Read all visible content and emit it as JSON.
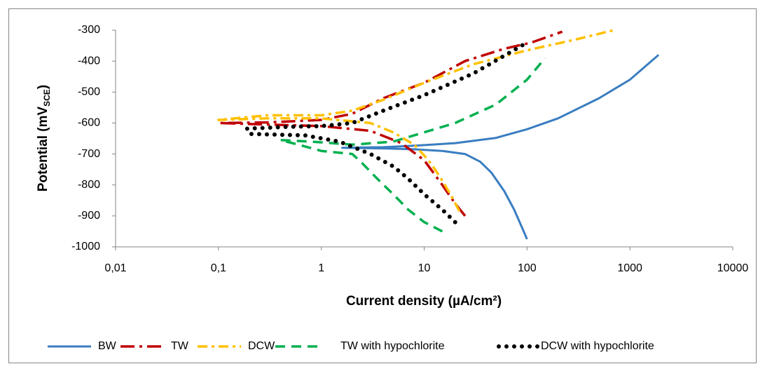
{
  "chart_data": {
    "type": "line",
    "xlabel": "Current density  (µA/cm²)",
    "ylabel": {
      "main": "Potential (mV",
      "sub": "SCE",
      "end": ")"
    },
    "xscale": "log",
    "xlim": [
      0.01,
      10000
    ],
    "xticks": [
      {
        "value": 0.01,
        "label": "0,01"
      },
      {
        "value": 0.1,
        "label": "0,1"
      },
      1,
      10,
      100,
      1000,
      10000
    ],
    "ylim": [
      -1000,
      -300
    ],
    "yticks": [
      -300,
      -400,
      -500,
      -600,
      -700,
      -800,
      -900,
      -1000
    ],
    "grid": false,
    "legend": "bottom",
    "series": [
      {
        "name": "BW",
        "color": "#3a7dc1",
        "dash": "solid",
        "x": [
          100,
          90,
          75,
          60,
          45,
          35,
          25,
          15,
          8,
          4,
          1.6,
          4,
          8,
          20,
          50,
          100,
          200,
          500,
          1000,
          1900
        ],
        "values": [
          -975,
          -940,
          -880,
          -820,
          -760,
          -725,
          -700,
          -690,
          -685,
          -682,
          -680,
          -678,
          -673,
          -665,
          -648,
          -620,
          -585,
          -520,
          -460,
          -380
        ]
      },
      {
        "name": "TW",
        "color": "#c00000",
        "dash": "dashdot",
        "x": [
          25,
          20,
          15,
          10,
          6,
          3,
          1,
          0.3,
          0.1,
          0.3,
          1,
          2,
          4,
          10,
          25,
          60,
          110,
          220
        ],
        "values": [
          -900,
          -860,
          -800,
          -720,
          -665,
          -625,
          -610,
          -605,
          -600,
          -598,
          -590,
          -570,
          -520,
          -470,
          -400,
          -360,
          -340,
          -305
        ]
      },
      {
        "name": "DCW",
        "color": "#ffc000",
        "dash": "dashdot2",
        "x": [
          22,
          18,
          14,
          11,
          8,
          5,
          3,
          1,
          0.3,
          0.1,
          0.3,
          1,
          2,
          4,
          10,
          30,
          100,
          300,
          700
        ],
        "values": [
          -885,
          -830,
          -770,
          -720,
          -670,
          -630,
          -600,
          -585,
          -585,
          -590,
          -575,
          -575,
          -560,
          -525,
          -470,
          -410,
          -365,
          -330,
          -300
        ]
      },
      {
        "name": "TW with hypochlorite",
        "color": "#00b050",
        "dash": "dashed",
        "x": [
          15,
          10,
          7,
          5,
          3.5,
          2.5,
          2,
          1,
          0.6,
          0.4,
          0.8,
          2,
          5,
          10,
          20,
          50,
          100,
          150
        ],
        "values": [
          -950,
          -920,
          -880,
          -830,
          -780,
          -730,
          -700,
          -690,
          -670,
          -655,
          -660,
          -670,
          -660,
          -630,
          -600,
          -540,
          -460,
          -390
        ]
      },
      {
        "name": "DCW with hypochlorite",
        "color": "#000000",
        "dash": "dotted",
        "x": [
          20,
          15,
          10,
          7,
          5,
          3,
          1.5,
          0.7,
          0.2,
          0.19,
          0.5,
          1,
          2,
          4,
          10,
          30,
          70,
          100
        ],
        "values": [
          -920,
          -880,
          -830,
          -780,
          -740,
          -700,
          -660,
          -640,
          -635,
          -618,
          -612,
          -610,
          -600,
          -560,
          -510,
          -440,
          -370,
          -340
        ]
      }
    ]
  }
}
